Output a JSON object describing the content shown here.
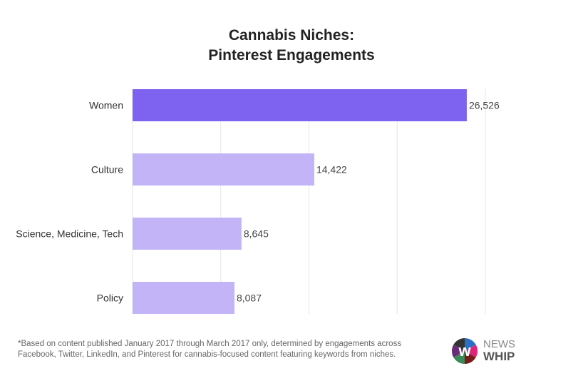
{
  "chart_data": {
    "type": "bar",
    "orientation": "horizontal",
    "title": "Cannabis Niches:",
    "subtitle": "Pinterest Engagements",
    "categories": [
      "Women",
      "Culture",
      "Science, Medicine, Tech",
      "Policy"
    ],
    "values": [
      26526,
      14422,
      8645,
      8087
    ],
    "value_labels": [
      "26,526",
      "14,422",
      "8,645",
      "8,087"
    ],
    "xlim": [
      0,
      28000
    ],
    "grid": true,
    "grid_step": 7000,
    "colors": {
      "highlight": "#7e63f0",
      "default": "#bfb0f7",
      "grid": "#e6e6e6"
    }
  },
  "footnote": [
    "*Based on content published January 2017 through March 2017 only, determined by engagements across",
    "Facebook, Twitter, LinkedIn, and Pinterest for cannabis-focused content featuring keywords from niches."
  ],
  "logo": {
    "line1": "NEWS",
    "line2": "WHIP"
  }
}
